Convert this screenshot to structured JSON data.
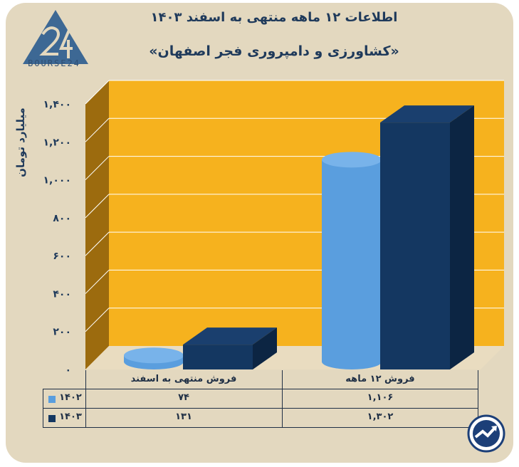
{
  "header": {
    "title": "اطلاعات ۱۲ ماهه منتهی به اسفند ۱۴۰۳",
    "subtitle": "«کشاورزی و دامپروری فجر اصفهان»"
  },
  "logo": {
    "text": "BOURSE24"
  },
  "colors": {
    "background": "#e3d8bf",
    "plot_back": "#f6b21e",
    "plot_side": "#9c6b0e",
    "series_1402": "#5a9ede",
    "series_1403": "#143761",
    "text": "#1f3a5b"
  },
  "chart_data": {
    "type": "bar",
    "categories": [
      "فروش منتهی به اسفند",
      "فروش ۱۲ ماهه"
    ],
    "series": [
      {
        "name": "۱۴۰۲",
        "values": [
          74,
          1106
        ]
      },
      {
        "name": "۱۴۰۳",
        "values": [
          131,
          1302
        ]
      }
    ],
    "ylabel": "میلیارد تومان",
    "ylim": [
      0,
      1400
    ],
    "yticks": [
      0,
      200,
      400,
      600,
      800,
      1000,
      1200,
      1400
    ],
    "ytick_labels": [
      "۰",
      "۲۰۰",
      "۴۰۰",
      "۶۰۰",
      "۸۰۰",
      "۱,۰۰۰",
      "۱,۲۰۰",
      "۱,۴۰۰"
    ],
    "grid": true,
    "legend": "table-below"
  },
  "table": {
    "category_labels": [
      "فروش منتهی به اسفند",
      "فروش ۱۲ ماهه"
    ],
    "rows": [
      {
        "series": "۱۴۰۲",
        "values": [
          "۷۴",
          "۱,۱۰۶"
        ]
      },
      {
        "series": "۱۴۰۳",
        "values": [
          "۱۳۱",
          "۱,۳۰۲"
        ]
      }
    ]
  }
}
